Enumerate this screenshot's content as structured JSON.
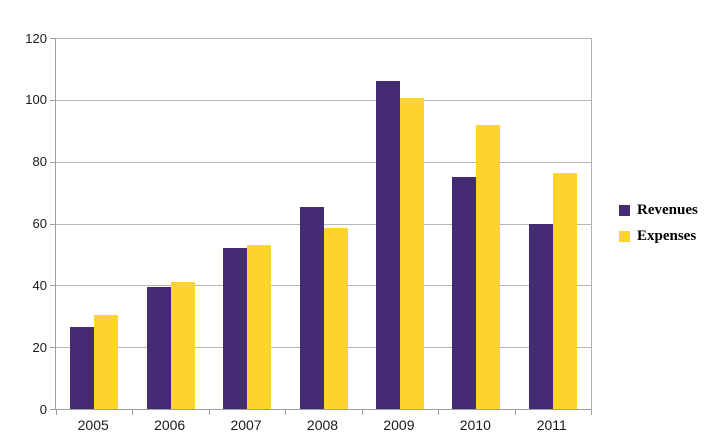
{
  "chart_data": {
    "type": "bar",
    "title": "",
    "xlabel": "",
    "ylabel": "",
    "categories": [
      "2005",
      "2006",
      "2007",
      "2008",
      "2009",
      "2010",
      "2011"
    ],
    "series": [
      {
        "name": "Revenues",
        "color": "#452B74",
        "values": [
          26.5,
          39.5,
          52,
          65.5,
          106,
          75,
          60
        ]
      },
      {
        "name": "Expenses",
        "color": "#FDD32D",
        "values": [
          30.5,
          41,
          53,
          58.5,
          100.5,
          92,
          76.5
        ]
      }
    ],
    "ylim": [
      0,
      120
    ],
    "ytick_interval": 20,
    "ytick_labels": [
      "0",
      "20",
      "40",
      "60",
      "80",
      "100",
      "120"
    ],
    "grid": true,
    "legend_position": "right",
    "colors": {
      "grid": "#B6B6B6",
      "axis": "#9E9E9E",
      "text": "#1A1A1A",
      "background": "#FFFFFF"
    }
  }
}
